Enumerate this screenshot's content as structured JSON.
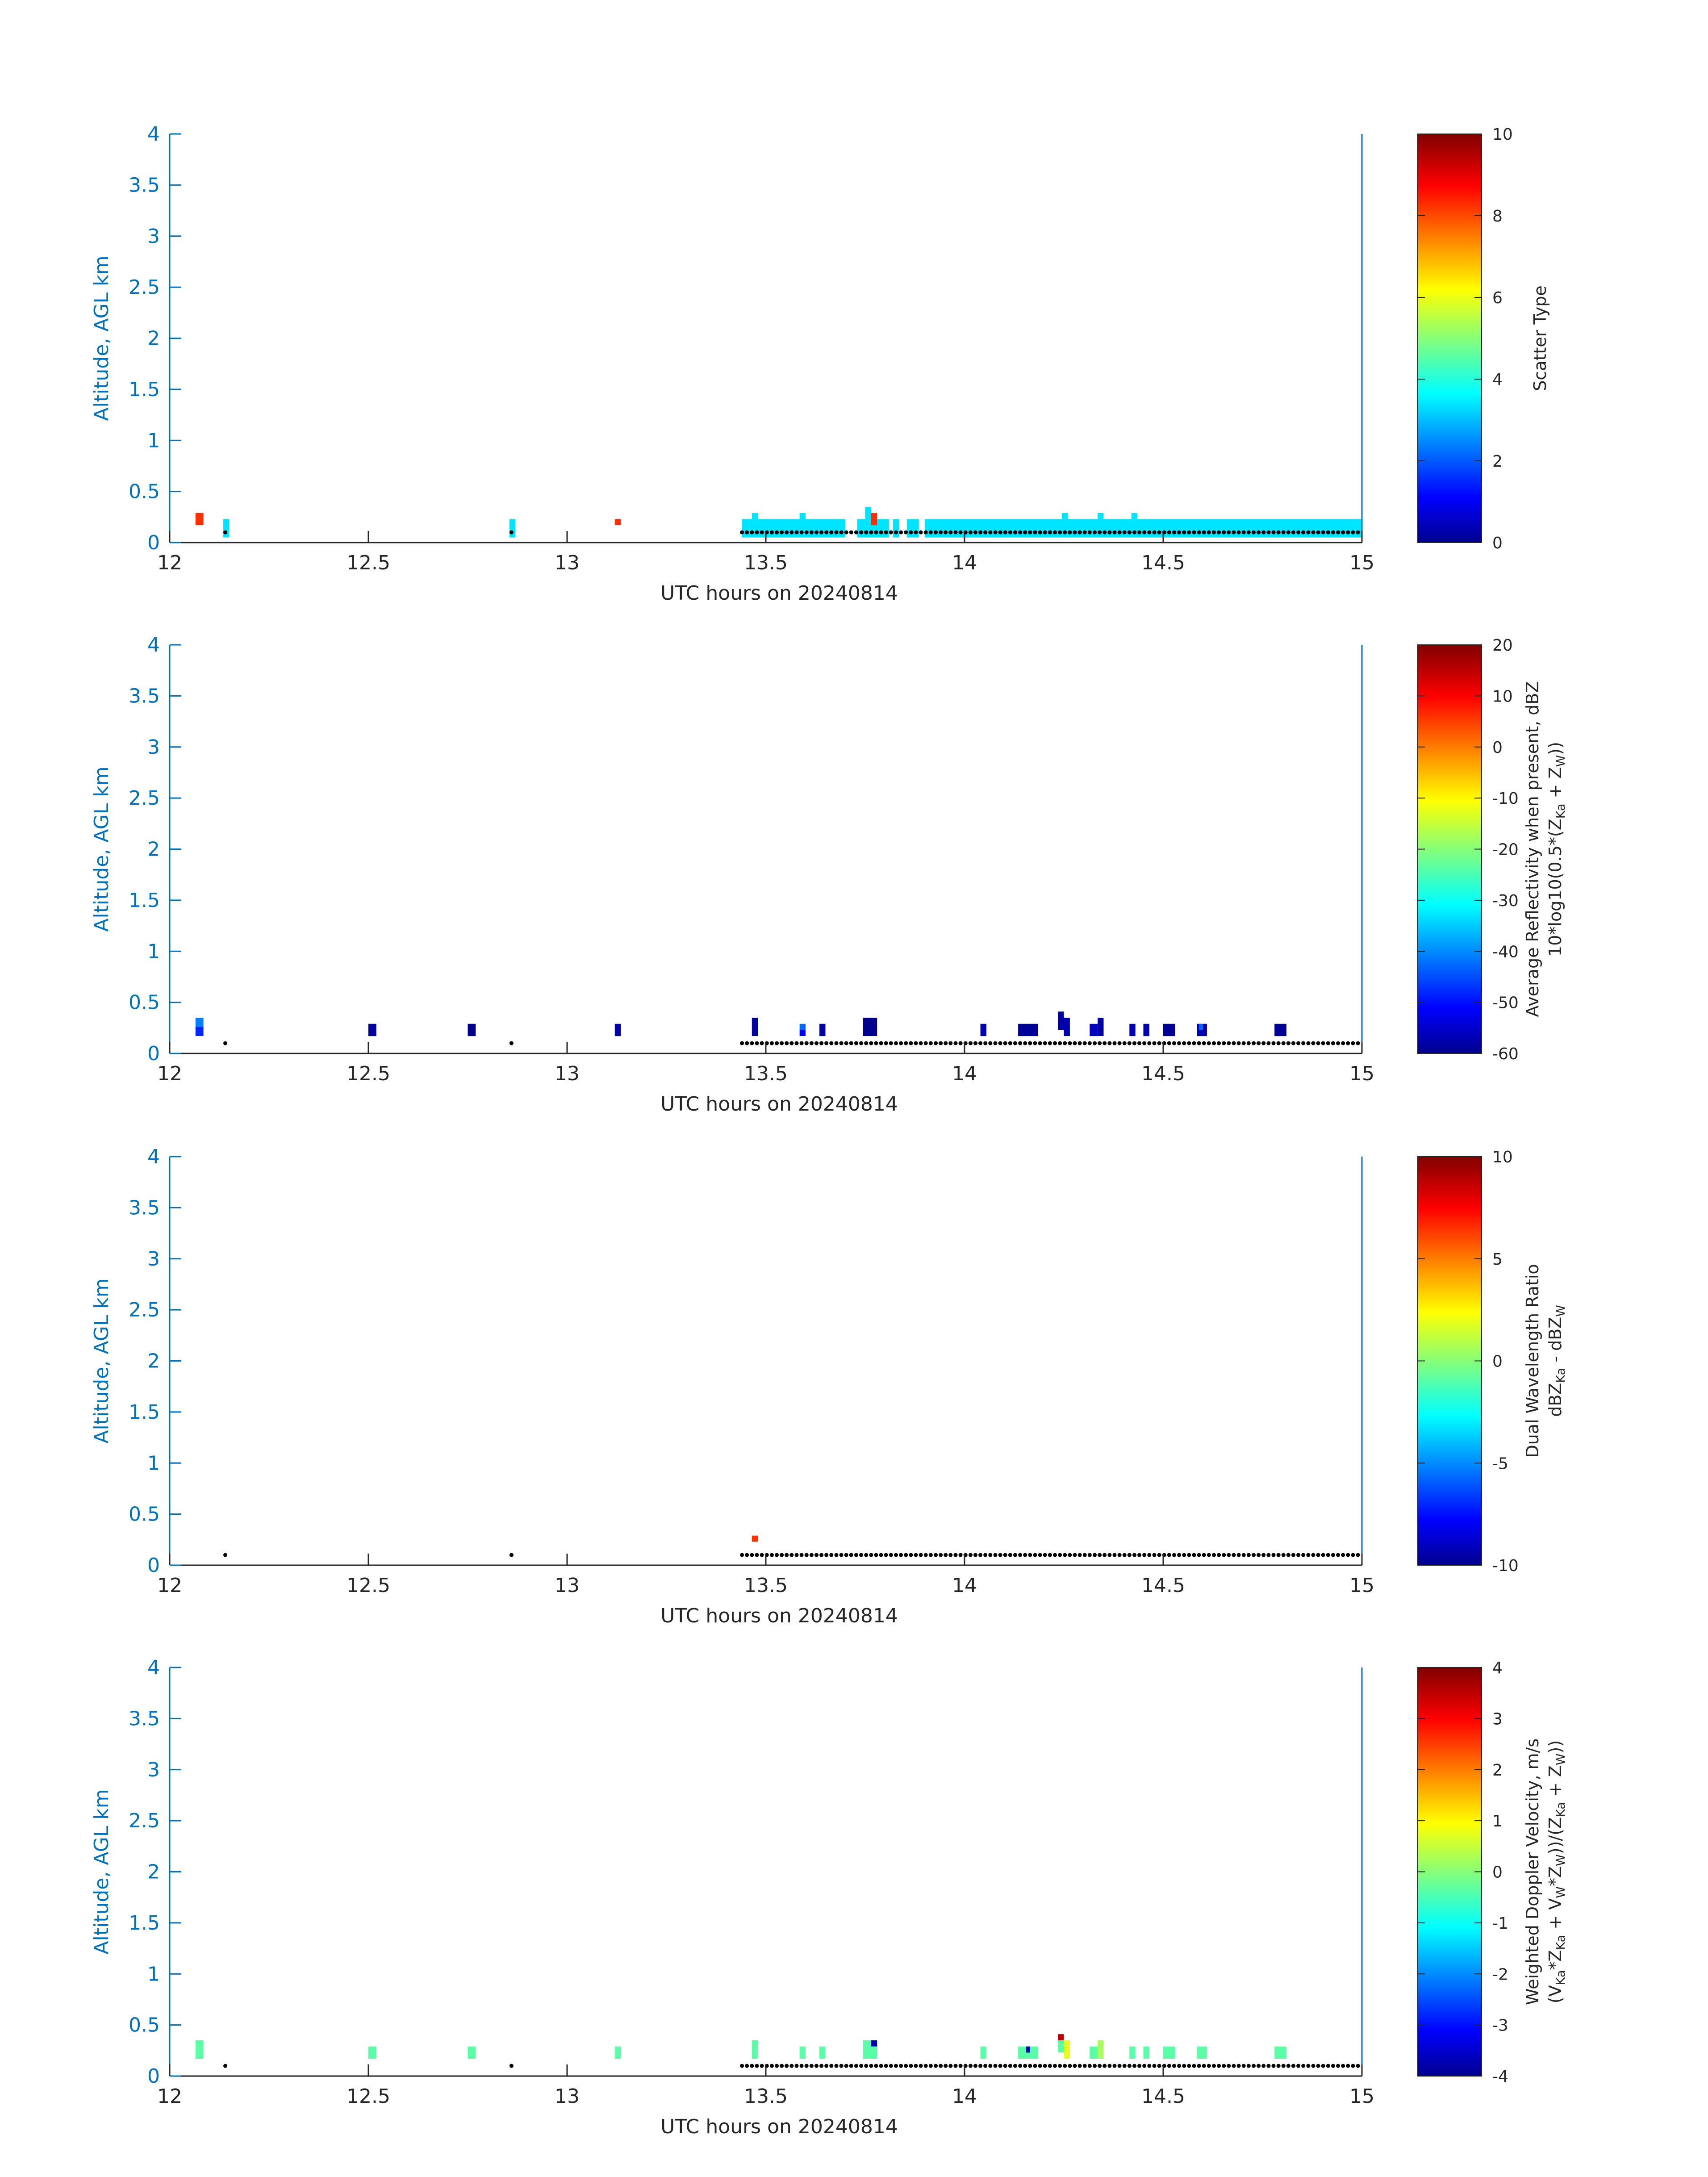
{
  "chart_data": [
    {
      "type": "heatmap",
      "xlabel": "UTC hours on 20240814",
      "ylabel": "Altitude, AGL km",
      "x_ticks": [
        "12",
        "12.5",
        "13",
        "13.5",
        "14",
        "14.5",
        "15"
      ],
      "y_ticks": [
        "0",
        "0.5",
        "1",
        "1.5",
        "2",
        "2.5",
        "3",
        "3.5",
        "4"
      ],
      "xlim": [
        12,
        15
      ],
      "ylim": [
        0,
        4
      ],
      "colorbar": {
        "label": "Scatter Type",
        "label_line2": [],
        "ticks": [
          "0",
          "2",
          "4",
          "6",
          "8",
          "10"
        ],
        "range": [
          0,
          10
        ]
      },
      "surface_markers": true,
      "cells": [
        {
          "t0": 12.065,
          "t1": 12.085,
          "h0": 0.17,
          "h1": 0.29,
          "v": 8.3
        },
        {
          "t0": 12.135,
          "t1": 12.15,
          "h0": 0.05,
          "h1": 0.23,
          "v": 3.5
        },
        {
          "t0": 12.855,
          "t1": 12.87,
          "h0": 0.05,
          "h1": 0.23,
          "v": 3.5
        },
        {
          "t0": 13.12,
          "t1": 13.135,
          "h0": 0.17,
          "h1": 0.23,
          "v": 8.3
        },
        {
          "t0": 13.44,
          "t1": 13.7,
          "h0": 0.05,
          "h1": 0.23,
          "v": 3.5
        },
        {
          "t0": 13.73,
          "t1": 13.81,
          "h0": 0.05,
          "h1": 0.23,
          "v": 3.5
        },
        {
          "t0": 13.82,
          "t1": 13.835,
          "h0": 0.05,
          "h1": 0.23,
          "v": 3.5
        },
        {
          "t0": 13.855,
          "t1": 13.885,
          "h0": 0.05,
          "h1": 0.23,
          "v": 3.5
        },
        {
          "t0": 13.9,
          "t1": 15.0,
          "h0": 0.05,
          "h1": 0.23,
          "v": 3.5
        },
        {
          "t0": 13.465,
          "t1": 13.48,
          "h0": 0.23,
          "h1": 0.29,
          "v": 3.5
        },
        {
          "t0": 13.585,
          "t1": 13.6,
          "h0": 0.23,
          "h1": 0.29,
          "v": 3.5
        },
        {
          "t0": 13.75,
          "t1": 13.765,
          "h0": 0.23,
          "h1": 0.35,
          "v": 3.5
        },
        {
          "t0": 13.765,
          "t1": 13.78,
          "h0": 0.17,
          "h1": 0.29,
          "v": 8.3
        },
        {
          "t0": 14.245,
          "t1": 14.26,
          "h0": 0.23,
          "h1": 0.29,
          "v": 3.5
        },
        {
          "t0": 14.335,
          "t1": 14.35,
          "h0": 0.23,
          "h1": 0.29,
          "v": 3.5
        },
        {
          "t0": 14.42,
          "t1": 14.435,
          "h0": 0.23,
          "h1": 0.29,
          "v": 3.5
        }
      ]
    },
    {
      "type": "heatmap",
      "xlabel": "UTC hours on 20240814",
      "ylabel": "Altitude, AGL km",
      "x_ticks": [
        "12",
        "12.5",
        "13",
        "13.5",
        "14",
        "14.5",
        "15"
      ],
      "y_ticks": [
        "0",
        "0.5",
        "1",
        "1.5",
        "2",
        "2.5",
        "3",
        "3.5",
        "4"
      ],
      "xlim": [
        12,
        15
      ],
      "ylim": [
        0,
        4
      ],
      "colorbar": {
        "label": "Average Reflectivity when present, dBZ",
        "label_line2": [
          {
            "t": "10*log10(0.5*(Z",
            "sub": false
          },
          {
            "t": "Ka",
            "sub": true
          },
          {
            "t": " + Z",
            "sub": false
          },
          {
            "t": "W",
            "sub": true
          },
          {
            "t": "))",
            "sub": false
          }
        ],
        "ticks": [
          "-60",
          "-50",
          "-40",
          "-30",
          "-20",
          "-10",
          "0",
          "10",
          "20"
        ],
        "range": [
          -60,
          20
        ]
      },
      "surface_markers": true,
      "cells": [
        {
          "t0": 12.065,
          "t1": 12.085,
          "h0": 0.17,
          "h1": 0.26,
          "v": -47
        },
        {
          "t0": 12.065,
          "t1": 12.085,
          "h0": 0.26,
          "h1": 0.35,
          "v": -40
        },
        {
          "t0": 12.5,
          "t1": 12.52,
          "h0": 0.17,
          "h1": 0.29,
          "v": -57
        },
        {
          "t0": 12.75,
          "t1": 12.77,
          "h0": 0.17,
          "h1": 0.29,
          "v": -59
        },
        {
          "t0": 13.12,
          "t1": 13.135,
          "h0": 0.17,
          "h1": 0.29,
          "v": -56
        },
        {
          "t0": 13.465,
          "t1": 13.48,
          "h0": 0.17,
          "h1": 0.35,
          "v": -57
        },
        {
          "t0": 13.585,
          "t1": 13.6,
          "h0": 0.17,
          "h1": 0.23,
          "v": -50
        },
        {
          "t0": 13.585,
          "t1": 13.6,
          "h0": 0.23,
          "h1": 0.29,
          "v": -42
        },
        {
          "t0": 13.635,
          "t1": 13.65,
          "h0": 0.17,
          "h1": 0.29,
          "v": -57
        },
        {
          "t0": 13.745,
          "t1": 13.78,
          "h0": 0.17,
          "h1": 0.35,
          "v": -59
        },
        {
          "t0": 14.04,
          "t1": 14.055,
          "h0": 0.17,
          "h1": 0.29,
          "v": -55
        },
        {
          "t0": 14.135,
          "t1": 14.185,
          "h0": 0.17,
          "h1": 0.29,
          "v": -58
        },
        {
          "t0": 14.235,
          "t1": 14.25,
          "h0": 0.23,
          "h1": 0.41,
          "v": -57
        },
        {
          "t0": 14.25,
          "t1": 14.265,
          "h0": 0.17,
          "h1": 0.35,
          "v": -56
        },
        {
          "t0": 14.315,
          "t1": 14.335,
          "h0": 0.17,
          "h1": 0.29,
          "v": -55
        },
        {
          "t0": 14.335,
          "t1": 14.35,
          "h0": 0.17,
          "h1": 0.35,
          "v": -57
        },
        {
          "t0": 14.415,
          "t1": 14.43,
          "h0": 0.17,
          "h1": 0.29,
          "v": -56
        },
        {
          "t0": 14.45,
          "t1": 14.465,
          "h0": 0.17,
          "h1": 0.29,
          "v": -56
        },
        {
          "t0": 14.5,
          "t1": 14.53,
          "h0": 0.17,
          "h1": 0.29,
          "v": -58
        },
        {
          "t0": 14.585,
          "t1": 14.61,
          "h0": 0.17,
          "h1": 0.29,
          "v": -56
        },
        {
          "t0": 14.59,
          "t1": 14.6,
          "h0": 0.23,
          "h1": 0.29,
          "v": -42
        },
        {
          "t0": 14.78,
          "t1": 14.81,
          "h0": 0.17,
          "h1": 0.29,
          "v": -58
        }
      ]
    },
    {
      "type": "heatmap",
      "xlabel": "UTC hours on 20240814",
      "ylabel": "Altitude, AGL km",
      "x_ticks": [
        "12",
        "12.5",
        "13",
        "13.5",
        "14",
        "14.5",
        "15"
      ],
      "y_ticks": [
        "0",
        "0.5",
        "1",
        "1.5",
        "2",
        "2.5",
        "3",
        "3.5",
        "4"
      ],
      "xlim": [
        12,
        15
      ],
      "ylim": [
        0,
        4
      ],
      "colorbar": {
        "label": "Dual Wavelength Ratio",
        "label_line2": [
          {
            "t": "dBZ",
            "sub": false
          },
          {
            "t": "Ka",
            "sub": true
          },
          {
            "t": " - dBZ",
            "sub": false
          },
          {
            "t": "W",
            "sub": true
          }
        ],
        "ticks": [
          "-10",
          "-5",
          "0",
          "5",
          "10"
        ],
        "range": [
          -10,
          10
        ]
      },
      "surface_markers": true,
      "cells": [
        {
          "t0": 13.465,
          "t1": 13.48,
          "h0": 0.23,
          "h1": 0.29,
          "v": 6.5
        }
      ]
    },
    {
      "type": "heatmap",
      "xlabel": "UTC hours on 20240814",
      "ylabel": "Altitude, AGL km",
      "x_ticks": [
        "12",
        "12.5",
        "13",
        "13.5",
        "14",
        "14.5",
        "15"
      ],
      "y_ticks": [
        "0",
        "0.5",
        "1",
        "1.5",
        "2",
        "2.5",
        "3",
        "3.5",
        "4"
      ],
      "xlim": [
        12,
        15
      ],
      "ylim": [
        0,
        4
      ],
      "colorbar": {
        "label": "Weighted Doppler Velocity, m/s",
        "label_line2": [
          {
            "t": "(V",
            "sub": false
          },
          {
            "t": "Ka",
            "sub": true
          },
          {
            "t": "*Z",
            "sub": false
          },
          {
            "t": "Ka",
            "sub": true
          },
          {
            "t": " + V",
            "sub": false
          },
          {
            "t": "W",
            "sub": true
          },
          {
            "t": "*Z",
            "sub": false
          },
          {
            "t": "W",
            "sub": true
          },
          {
            "t": "))/(Z",
            "sub": false
          },
          {
            "t": "Ka",
            "sub": true
          },
          {
            "t": " + Z",
            "sub": false
          },
          {
            "t": "W",
            "sub": true
          },
          {
            "t": "))",
            "sub": false
          }
        ],
        "ticks": [
          "-4",
          "-3",
          "-2",
          "-1",
          "0",
          "1",
          "2",
          "3",
          "4"
        ],
        "range": [
          -4,
          4
        ]
      },
      "surface_markers": true,
      "cells": [
        {
          "t0": 12.065,
          "t1": 12.085,
          "h0": 0.17,
          "h1": 0.35,
          "v": -0.3
        },
        {
          "t0": 12.5,
          "t1": 12.52,
          "h0": 0.17,
          "h1": 0.29,
          "v": -0.3
        },
        {
          "t0": 12.75,
          "t1": 12.77,
          "h0": 0.17,
          "h1": 0.29,
          "v": -0.3
        },
        {
          "t0": 13.12,
          "t1": 13.135,
          "h0": 0.17,
          "h1": 0.29,
          "v": -0.3
        },
        {
          "t0": 13.465,
          "t1": 13.48,
          "h0": 0.17,
          "h1": 0.35,
          "v": -0.3
        },
        {
          "t0": 13.585,
          "t1": 13.6,
          "h0": 0.17,
          "h1": 0.29,
          "v": -0.3
        },
        {
          "t0": 13.635,
          "t1": 13.65,
          "h0": 0.17,
          "h1": 0.29,
          "v": -0.3
        },
        {
          "t0": 13.745,
          "t1": 13.78,
          "h0": 0.17,
          "h1": 0.35,
          "v": -0.3
        },
        {
          "t0": 13.765,
          "t1": 13.78,
          "h0": 0.29,
          "h1": 0.35,
          "v": -3.5
        },
        {
          "t0": 14.04,
          "t1": 14.055,
          "h0": 0.17,
          "h1": 0.29,
          "v": -0.3
        },
        {
          "t0": 14.135,
          "t1": 14.185,
          "h0": 0.17,
          "h1": 0.29,
          "v": -0.3
        },
        {
          "t0": 14.155,
          "t1": 14.165,
          "h0": 0.23,
          "h1": 0.29,
          "v": -3.5
        },
        {
          "t0": 14.235,
          "t1": 14.25,
          "h0": 0.23,
          "h1": 0.35,
          "v": -0.3
        },
        {
          "t0": 14.235,
          "t1": 14.25,
          "h0": 0.35,
          "h1": 0.41,
          "v": 3.5
        },
        {
          "t0": 14.25,
          "t1": 14.265,
          "h0": 0.17,
          "h1": 0.35,
          "v": 0.8
        },
        {
          "t0": 14.315,
          "t1": 14.335,
          "h0": 0.17,
          "h1": 0.29,
          "v": -0.3
        },
        {
          "t0": 14.335,
          "t1": 14.35,
          "h0": 0.17,
          "h1": 0.35,
          "v": 0.3
        },
        {
          "t0": 14.415,
          "t1": 14.43,
          "h0": 0.17,
          "h1": 0.29,
          "v": -0.3
        },
        {
          "t0": 14.45,
          "t1": 14.465,
          "h0": 0.17,
          "h1": 0.29,
          "v": -0.3
        },
        {
          "t0": 14.5,
          "t1": 14.53,
          "h0": 0.17,
          "h1": 0.29,
          "v": -0.3
        },
        {
          "t0": 14.585,
          "t1": 14.61,
          "h0": 0.17,
          "h1": 0.29,
          "v": -0.3
        },
        {
          "t0": 14.78,
          "t1": 14.81,
          "h0": 0.17,
          "h1": 0.29,
          "v": -0.3
        }
      ]
    }
  ]
}
